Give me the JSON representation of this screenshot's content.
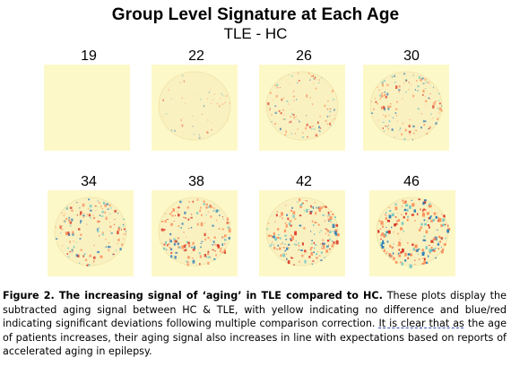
{
  "figure": {
    "title": "Group Level Signature at Each Age",
    "subtitle": "TLE - HC",
    "panels": [
      {
        "age": "19",
        "intensity": 0.0
      },
      {
        "age": "22",
        "intensity": 0.15
      },
      {
        "age": "26",
        "intensity": 0.45
      },
      {
        "age": "30",
        "intensity": 0.6
      },
      {
        "age": "34",
        "intensity": 0.7
      },
      {
        "age": "38",
        "intensity": 0.75
      },
      {
        "age": "42",
        "intensity": 0.85
      },
      {
        "age": "46",
        "intensity": 1.0
      }
    ],
    "colors": {
      "background": "#fdf8c8",
      "brain": "#faf1c0",
      "red": "#d7301f",
      "orange": "#fc8d59",
      "blue": "#2c7bb6",
      "cyan": "#74c7c2"
    }
  },
  "caption": {
    "lead": "Figure 2. The increasing signal of ‘aging’ in TLE compared to HC.",
    "body1": " These plots display the subtracted aging signal between HC & TLE, with yellow indicating no difference and blue/red indicating significant deviations following multiple comparison correction. ",
    "underlined": "It is clear that as",
    "body2": " the age of patients increases, their aging signal also increases in line with expectations based on reports of accelerated aging in epilepsy."
  }
}
